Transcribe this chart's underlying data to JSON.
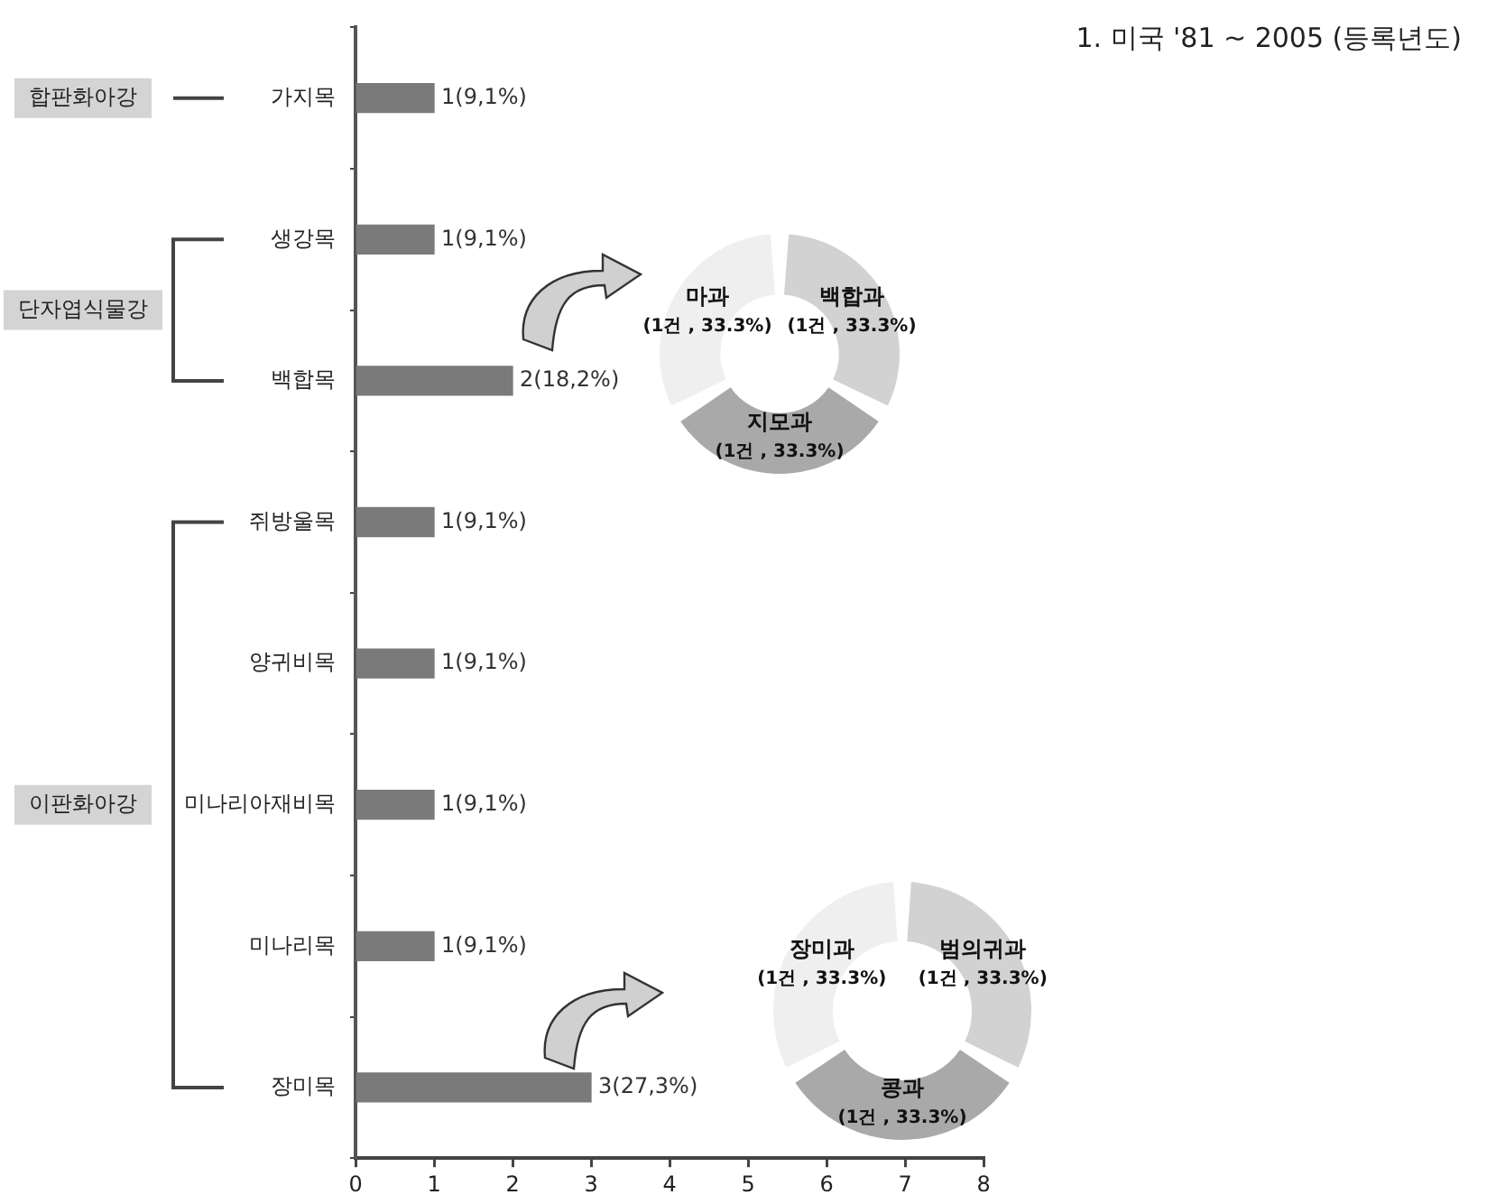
{
  "chart_data": [
    {
      "type": "bar",
      "orientation": "horizontal",
      "categories": [
        "가지목",
        "생강목",
        "백합목",
        "쥐방울목",
        "양귀비목",
        "미나리아재비목",
        "미나리목",
        "장미목"
      ],
      "values": [
        1,
        1,
        2,
        1,
        1,
        1,
        1,
        3
      ],
      "color": "#7a7a7a",
      "value_labels": [
        "1(9,1%)",
        "1(9,1%)",
        "2(18,2%)",
        "1(9,1%)",
        "1(9,1%)",
        "1(9,1%)",
        "1(9,1%)",
        "3(27,3%)"
      ],
      "xlim": [
        0,
        8
      ],
      "xticks": [
        0,
        1,
        2,
        3,
        4,
        5,
        6,
        7,
        8
      ],
      "grid": false,
      "legend": false,
      "annotations": [
        "합판화아강",
        "단자엽식물강",
        "이판화아강"
      ]
    },
    {
      "type": "donut",
      "title": "1. 미국 '81 ~ 2005 (등록년도)",
      "categories": [
        "백합과",
        "지모과",
        "마과"
      ],
      "values": [
        1,
        1,
        1
      ],
      "colors": [
        "#d2d2d2",
        "#a9a9a9",
        "#efefef"
      ],
      "value_labels": [
        "(1건 , 33.3%)",
        "(1건 , 33.3%)",
        "(1건 , 33.3%)"
      ],
      "legend": false
    },
    {
      "type": "donut",
      "categories": [
        "범의귀과",
        "콩과",
        "장미과"
      ],
      "values": [
        1,
        1,
        1
      ],
      "colors": [
        "#d2d2d2",
        "#a9a9a9",
        "#efefef"
      ],
      "value_labels": [
        "(1건 , 33.3%)",
        "(1건 , 33.3%)",
        "(1건 , 33.3%)"
      ],
      "legend": false
    }
  ]
}
